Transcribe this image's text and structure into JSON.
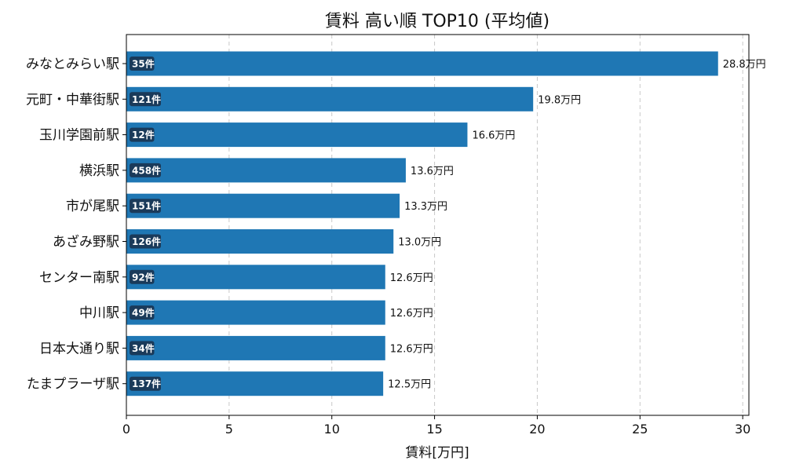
{
  "chart_data": {
    "type": "bar",
    "orientation": "horizontal",
    "title": "賃料 高い順 TOP10 (平均値)",
    "xlabel": "賃料[万円]",
    "ylabel": "",
    "xlim": [
      0,
      30.3
    ],
    "xticks": [
      0,
      5,
      10,
      15,
      20,
      25,
      30
    ],
    "grid": "x, dashed",
    "bar_color": "#1f77b4",
    "badge_color": "#1a3a5a",
    "categories": [
      "みなとみらい駅",
      "元町・中華街駅",
      "玉川学園前駅",
      "横浜駅",
      "市が尾駅",
      "あざみ野駅",
      "センター南駅",
      "中川駅",
      "日本大通り駅",
      "たまプラーザ駅"
    ],
    "values": [
      28.8,
      19.8,
      16.6,
      13.6,
      13.3,
      13.0,
      12.6,
      12.6,
      12.6,
      12.5
    ],
    "value_labels": [
      "28.8万円",
      "19.8万円",
      "16.6万円",
      "13.6万円",
      "13.3万円",
      "13.0万円",
      "12.6万円",
      "12.6万円",
      "12.6万円",
      "12.5万円"
    ],
    "counts": [
      "35件",
      "121件",
      "12件",
      "458件",
      "151件",
      "126件",
      "92件",
      "49件",
      "34件",
      "137件"
    ]
  }
}
